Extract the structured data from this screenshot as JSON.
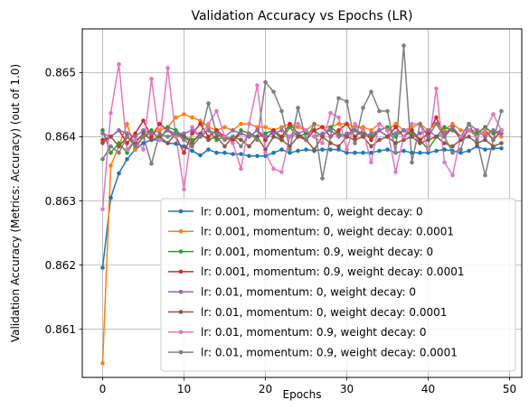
{
  "chart_data": {
    "type": "line",
    "title": "Validation Accuracy vs Epochs (LR)",
    "xlabel": "Epochs",
    "ylabel": "Validation Accuracy (Metrics: Accuracy) (out of 1.0)",
    "xlim": [
      -2.5,
      51.5
    ],
    "ylim": [
      0.86025,
      0.86568
    ],
    "xticks": [
      0,
      10,
      20,
      30,
      40,
      50
    ],
    "yticks": [
      0.861,
      0.862,
      0.863,
      0.864,
      0.865
    ],
    "grid": true,
    "legend_position": "lower-right",
    "x": [
      0,
      1,
      2,
      3,
      4,
      5,
      6,
      7,
      8,
      9,
      10,
      11,
      12,
      13,
      14,
      15,
      16,
      17,
      18,
      19,
      20,
      21,
      22,
      23,
      24,
      25,
      26,
      27,
      28,
      29,
      30,
      31,
      32,
      33,
      34,
      35,
      36,
      37,
      38,
      39,
      40,
      41,
      42,
      43,
      44,
      45,
      46,
      47,
      48,
      49
    ],
    "series": [
      {
        "name": "lr: 0.001, momentum: 0, weight decay: 0",
        "color": "#1f77b4",
        "values": [
          0.86196,
          0.86305,
          0.86343,
          0.86365,
          0.8638,
          0.8639,
          0.86395,
          0.86395,
          0.8639,
          0.86389,
          0.86385,
          0.86378,
          0.86371,
          0.8638,
          0.86375,
          0.86375,
          0.86373,
          0.86373,
          0.8637,
          0.8637,
          0.8637,
          0.86375,
          0.8638,
          0.86375,
          0.86378,
          0.8638,
          0.86378,
          0.8638,
          0.8638,
          0.8638,
          0.86375,
          0.86375,
          0.86375,
          0.86375,
          0.86378,
          0.8638,
          0.86375,
          0.86378,
          0.86375,
          0.86375,
          0.86375,
          0.86378,
          0.8638,
          0.86378,
          0.86375,
          0.86378,
          0.86385,
          0.8638,
          0.86382,
          0.86382
        ]
      },
      {
        "name": "lr: 0.001, momentum: 0, weight decay: 0.0001",
        "color": "#ff7f0e",
        "values": [
          0.86047,
          0.86355,
          0.86385,
          0.8642,
          0.8638,
          0.864,
          0.86405,
          0.8641,
          0.86415,
          0.8643,
          0.86435,
          0.8643,
          0.86425,
          0.86415,
          0.8641,
          0.86415,
          0.8641,
          0.8642,
          0.8642,
          0.86415,
          0.86415,
          0.8641,
          0.86415,
          0.8642,
          0.86415,
          0.8641,
          0.8642,
          0.86415,
          0.86415,
          0.8642,
          0.8642,
          0.86415,
          0.86415,
          0.8641,
          0.8642,
          0.8641,
          0.8642,
          0.8641,
          0.86415,
          0.8642,
          0.8641,
          0.8642,
          0.8641,
          0.8642,
          0.8641,
          0.8641,
          0.8641,
          0.86405,
          0.8641,
          0.864
        ]
      },
      {
        "name": "lr: 0.001, momentum: 0.9, weight decay: 0",
        "color": "#2ca02c",
        "values": [
          0.8641,
          0.86375,
          0.8639,
          0.86375,
          0.86395,
          0.864,
          0.8641,
          0.86395,
          0.86415,
          0.8641,
          0.864,
          0.86395,
          0.864,
          0.8641,
          0.86395,
          0.864,
          0.86395,
          0.8641,
          0.86405,
          0.864,
          0.86405,
          0.8641,
          0.86395,
          0.86415,
          0.864,
          0.86405,
          0.8641,
          0.864,
          0.86415,
          0.86405,
          0.864,
          0.8641,
          0.86405,
          0.864,
          0.8641,
          0.86415,
          0.864,
          0.8641,
          0.86405,
          0.86395,
          0.8638,
          0.864,
          0.86415,
          0.8641,
          0.864,
          0.8641,
          0.86405,
          0.86415,
          0.86405,
          0.8641
        ]
      },
      {
        "name": "lr: 0.001, momentum: 0.9, weight decay: 0.0001",
        "color": "#d62728",
        "values": [
          0.86395,
          0.864,
          0.8641,
          0.8639,
          0.86405,
          0.86425,
          0.864,
          0.8642,
          0.8641,
          0.864,
          0.86375,
          0.86405,
          0.8642,
          0.864,
          0.8641,
          0.864,
          0.86395,
          0.86405,
          0.864,
          0.8641,
          0.86395,
          0.8641,
          0.864,
          0.8642,
          0.86405,
          0.86395,
          0.8641,
          0.86415,
          0.864,
          0.8641,
          0.8642,
          0.864,
          0.8641,
          0.86395,
          0.8641,
          0.864,
          0.86415,
          0.864,
          0.8641,
          0.86395,
          0.86405,
          0.8643,
          0.864,
          0.86415,
          0.86395,
          0.8641,
          0.864,
          0.8641,
          0.86395,
          0.8641
        ]
      },
      {
        "name": "lr: 0.01, momentum: 0, weight decay: 0",
        "color": "#9467bd",
        "values": [
          0.86405,
          0.864,
          0.8641,
          0.86405,
          0.864,
          0.8641,
          0.86405,
          0.864,
          0.8641,
          0.86405,
          0.86405,
          0.8641,
          0.864,
          0.8641,
          0.86405,
          0.864,
          0.8641,
          0.86405,
          0.864,
          0.8641,
          0.864,
          0.86405,
          0.8641,
          0.864,
          0.86405,
          0.8641,
          0.864,
          0.86405,
          0.8641,
          0.864,
          0.86405,
          0.8641,
          0.864,
          0.86405,
          0.8641,
          0.864,
          0.86405,
          0.8641,
          0.864,
          0.86405,
          0.8641,
          0.864,
          0.86405,
          0.86415,
          0.864,
          0.8642,
          0.8641,
          0.864,
          0.8641,
          0.86405
        ]
      },
      {
        "name": "lr: 0.01, momentum: 0, weight decay: 0.0001",
        "color": "#8c564b",
        "values": [
          0.8639,
          0.864,
          0.86385,
          0.864,
          0.8639,
          0.86405,
          0.86395,
          0.864,
          0.8639,
          0.86405,
          0.864,
          0.8639,
          0.86405,
          0.86395,
          0.864,
          0.86385,
          0.864,
          0.86395,
          0.86385,
          0.864,
          0.8638,
          0.864,
          0.86395,
          0.86385,
          0.864,
          0.86395,
          0.8638,
          0.864,
          0.8639,
          0.86385,
          0.864,
          0.86395,
          0.864,
          0.86385,
          0.86395,
          0.864,
          0.8639,
          0.86395,
          0.864,
          0.8639,
          0.86395,
          0.864,
          0.8639,
          0.86385,
          0.86395,
          0.864,
          0.8639,
          0.86395,
          0.86385,
          0.8639
        ]
      },
      {
        "name": "lr: 0.01, momentum: 0.9, weight decay: 0",
        "color": "#e377c2",
        "values": [
          0.86287,
          0.86437,
          0.86513,
          0.8638,
          0.86395,
          0.8638,
          0.8649,
          0.86395,
          0.86507,
          0.864,
          0.86318,
          0.86415,
          0.864,
          0.8642,
          0.8644,
          0.864,
          0.8639,
          0.8635,
          0.8642,
          0.8648,
          0.86375,
          0.8635,
          0.86345,
          0.864,
          0.8642,
          0.8641,
          0.864,
          0.8639,
          0.86437,
          0.8643,
          0.8638,
          0.8642,
          0.8641,
          0.8636,
          0.8642,
          0.8641,
          0.86345,
          0.864,
          0.8642,
          0.8642,
          0.8638,
          0.86475,
          0.8636,
          0.8634,
          0.864,
          0.8641,
          0.864,
          0.8641,
          0.86435,
          0.8641
        ]
      },
      {
        "name": "lr: 0.01, momentum: 0.9, weight decay: 0.0001",
        "color": "#7f7f7f",
        "values": [
          0.86365,
          0.86385,
          0.86375,
          0.864,
          0.86385,
          0.864,
          0.86358,
          0.86405,
          0.864,
          0.86405,
          0.86395,
          0.86385,
          0.864,
          0.86452,
          0.86405,
          0.86395,
          0.864,
          0.86385,
          0.86405,
          0.86395,
          0.86485,
          0.8647,
          0.8644,
          0.8638,
          0.86445,
          0.86395,
          0.8642,
          0.86335,
          0.864,
          0.8646,
          0.86455,
          0.8639,
          0.86445,
          0.8647,
          0.8644,
          0.8644,
          0.86375,
          0.86542,
          0.8636,
          0.8642,
          0.864,
          0.8642,
          0.864,
          0.86375,
          0.8638,
          0.8642,
          0.86395,
          0.8634,
          0.86395,
          0.8644
        ]
      }
    ]
  }
}
